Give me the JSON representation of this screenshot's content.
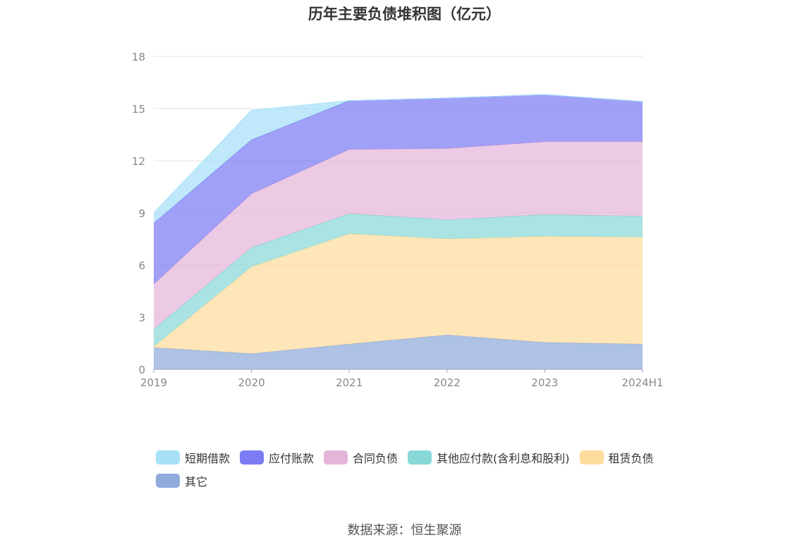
{
  "chart_data": {
    "type": "area",
    "stacked": true,
    "title": "历年主要负债堆积图（亿元）",
    "categories": [
      "2019",
      "2020",
      "2021",
      "2022",
      "2023",
      "2024H1"
    ],
    "yticks": [
      "0",
      "3",
      "6",
      "9",
      "12",
      "15",
      "18"
    ],
    "ylim": [
      0,
      18
    ],
    "grid": true,
    "legend_position": "bottom",
    "series": [
      {
        "name": "其它",
        "color": "#8fabdb",
        "values": [
          1.25,
          0.9,
          1.45,
          1.98,
          1.55,
          1.45
        ]
      },
      {
        "name": "租赁负债",
        "color": "#fddc9c",
        "values": [
          0.05,
          5.0,
          6.35,
          5.52,
          6.1,
          6.15
        ]
      },
      {
        "name": "其他应付款(含利息和股利)",
        "color": "#88d8d8",
        "values": [
          1.0,
          1.1,
          1.15,
          1.1,
          1.25,
          1.2
        ]
      },
      {
        "name": "合同负债",
        "color": "#e5b5d9",
        "values": [
          2.6,
          3.1,
          3.7,
          4.1,
          4.2,
          4.3
        ]
      },
      {
        "name": "应付账款",
        "color": "#7b7cf3",
        "values": [
          3.5,
          3.1,
          2.8,
          2.9,
          2.7,
          2.3
        ]
      },
      {
        "name": "短期借款",
        "color": "#a6e1f8",
        "values": [
          0.6,
          1.7,
          0.0,
          0.0,
          0.0,
          0.0
        ]
      }
    ]
  },
  "footer": {
    "source": "数据来源：恒生聚源"
  }
}
